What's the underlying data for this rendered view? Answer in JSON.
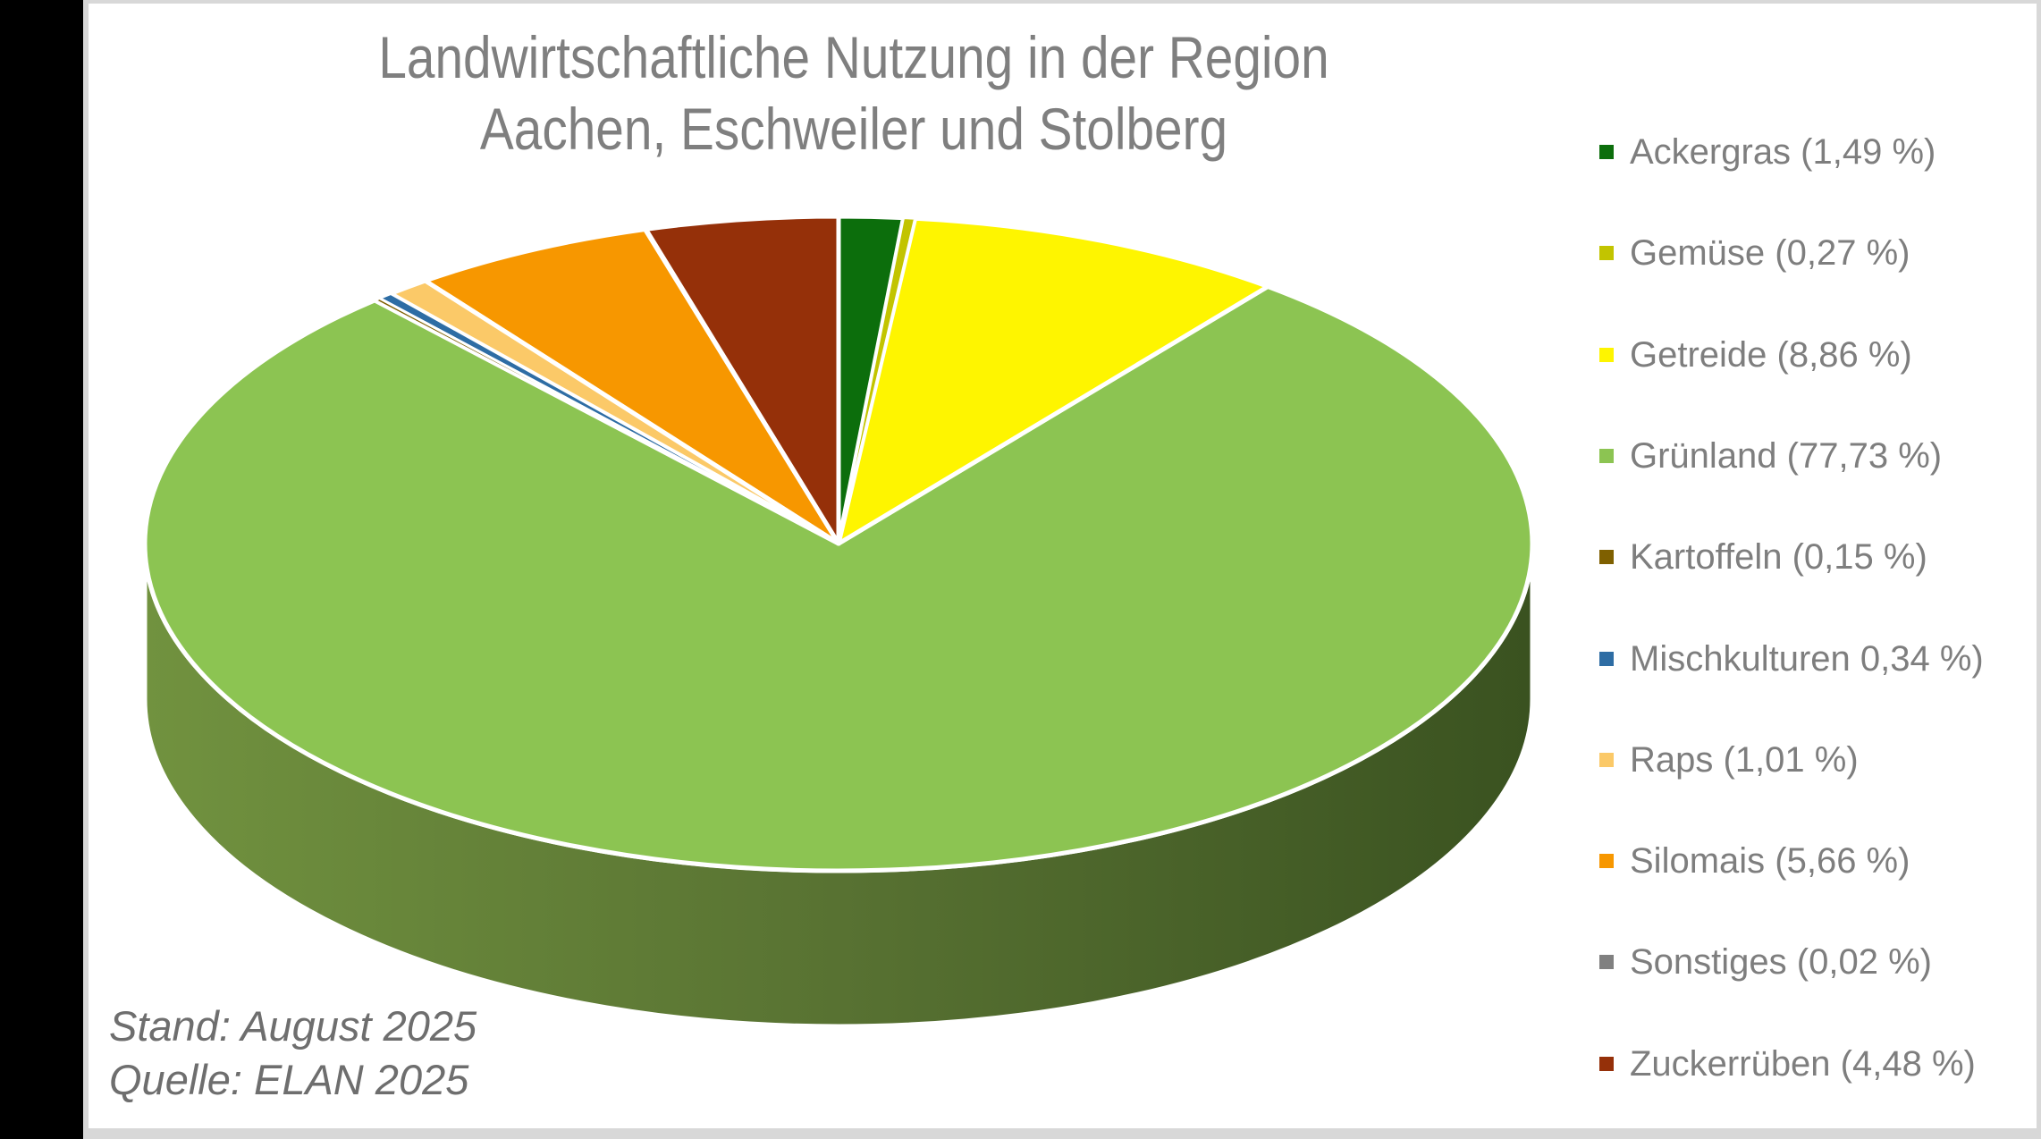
{
  "frame": {
    "left_bar_color": "#000000",
    "page_edge_color": "#d8d8d8",
    "slide_background": "#ffffff"
  },
  "title": {
    "line1": "Landwirtschaftliche Nutzung in der Region",
    "line2": "Aachen, Eschweiler und Stolberg",
    "color": "#7f7f7f"
  },
  "annotations": {
    "stand": "Stand: August 2025",
    "quelle": "Quelle: ELAN 2025",
    "color": "#6e6e6e"
  },
  "legend": {
    "text_color": "#7e7e7e",
    "position": "right",
    "items": [
      {
        "label": "Ackergras (1,49 %)"
      },
      {
        "label": "Gemüse (0,27 %)"
      },
      {
        "label": "Getreide (8,86 %)"
      },
      {
        "label": "Grünland (77,73 %)"
      },
      {
        "label": "Kartoffeln (0,15 %)"
      },
      {
        "label": "Mischkulturen 0,34 %)"
      },
      {
        "label": "Raps (1,01 %)"
      },
      {
        "label": "Silomais (5,66 %)"
      },
      {
        "label": "Sonstiges (0,02 %)"
      },
      {
        "label": "Zuckerrüben (4,48 %)"
      }
    ]
  },
  "chart_data": {
    "type": "pie",
    "style": "3d",
    "title": "Landwirtschaftliche Nutzung in der Region Aachen, Eschweiler und Stolberg",
    "categories": [
      "Ackergras",
      "Gemüse",
      "Getreide",
      "Grünland",
      "Kartoffeln",
      "Mischkulturen",
      "Raps",
      "Silomais",
      "Sonstiges",
      "Zuckerrüben"
    ],
    "values": [
      1.49,
      0.27,
      8.86,
      77.73,
      0.15,
      0.34,
      1.01,
      5.66,
      0.02,
      4.48
    ],
    "unit": "%",
    "colors": [
      "#0c6e0c",
      "#c2c400",
      "#fef500",
      "#8cc452",
      "#7f6000",
      "#2e6da4",
      "#fbc968",
      "#f79700",
      "#808080",
      "#953009"
    ],
    "start_angle_deg": 0,
    "direction": "clockwise",
    "legend_position": "right",
    "separator_color": "#ffffff",
    "side_gradient": [
      "#71923f",
      "#587232",
      "#3a5220"
    ]
  }
}
